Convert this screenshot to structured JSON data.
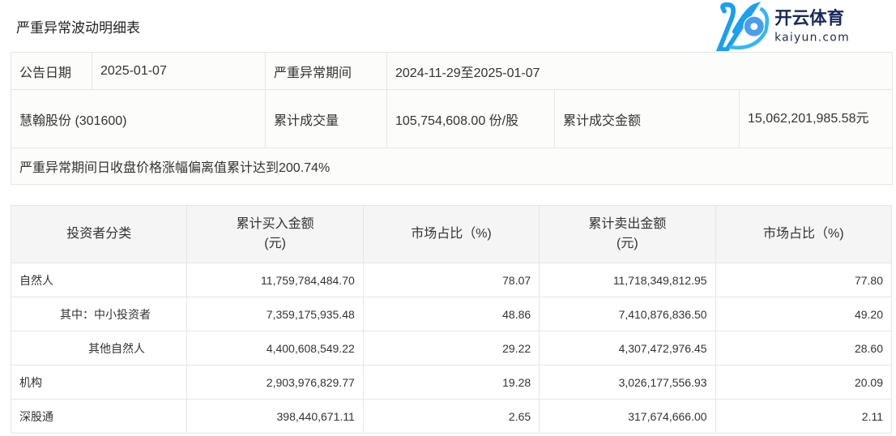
{
  "title": "严重异常波动明细表",
  "info": {
    "announce_date_label": "公告日期",
    "announce_date": "2025-01-07",
    "period_label": "严重异常期间",
    "period": "2024-11-29至2025-01-07",
    "stock": "慧翰股份 (301600)",
    "volume_label": "累计成交量",
    "volume": "105,754,608.00 份/股",
    "amount_label": "累计成交金额",
    "amount": "15,062,201,985.58元",
    "note": "严重异常期间日收盘价格涨幅偏离值累计达到200.74%"
  },
  "detail": {
    "headers": [
      "投资者分类",
      "累计买入金额(元)",
      "市场占比（%)",
      "累计卖出金额(元)",
      "市场占比（%)"
    ],
    "header_lines": [
      [
        "投资者分类"
      ],
      [
        "累计买入金额",
        "(元)"
      ],
      [
        "市场占比（%)"
      ],
      [
        "累计卖出金额",
        "(元)"
      ],
      [
        "市场占比（%)"
      ]
    ],
    "rows": [
      [
        "自然人",
        "11,759,784,484.70",
        "78.07",
        "11,718,349,812.95",
        "77.80"
      ],
      [
        "其中：中小投资者",
        "7,359,175,935.48",
        "48.86",
        "7,410,876,836.50",
        "49.20"
      ],
      [
        "其他自然人",
        "4,400,608,549.22",
        "29.22",
        "4,307,472,976.45",
        "28.60"
      ],
      [
        "机构",
        "2,903,976,829.77",
        "19.28",
        "3,026,177,556.93",
        "20.09"
      ],
      [
        "深股通",
        "398,440,671.11",
        "2.65",
        "317,674,666.00",
        "2.11"
      ]
    ]
  },
  "watermark": {
    "cn": "开云体育",
    "en": "kaiyun.com",
    "colors": {
      "primary": "#1aa0f0",
      "text": "#1b2a5c"
    }
  }
}
